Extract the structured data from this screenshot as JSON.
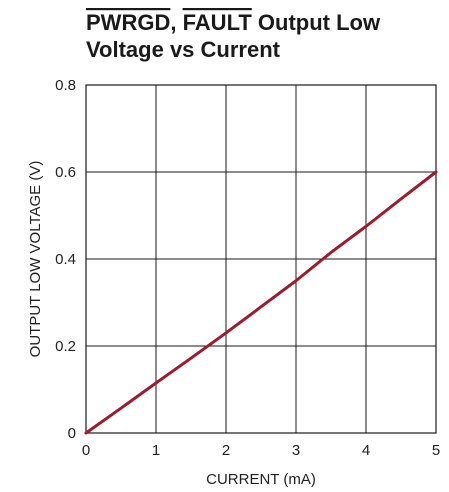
{
  "chart_data": {
    "type": "line",
    "title": {
      "line1_parts": [
        "PWRGD",
        ", ",
        "FAULT",
        " Output Low"
      ],
      "line2": "Voltage vs Current"
    },
    "xlabel": "CURRENT (mA)",
    "ylabel": "OUTPUT LOW VOLTAGE (V)",
    "xlim": [
      0,
      5
    ],
    "ylim": [
      0,
      0.8
    ],
    "x_ticks": [
      0,
      1,
      2,
      3,
      4,
      5
    ],
    "y_ticks": [
      0,
      0.2,
      0.4,
      0.6,
      0.8
    ],
    "x_tick_labels": [
      "0",
      "1",
      "2",
      "3",
      "4",
      "5"
    ],
    "y_tick_labels": [
      "0",
      "0.2",
      "0.4",
      "0.6",
      "0.8"
    ],
    "grid": true,
    "series": [
      {
        "color": "#9b1b30",
        "x": [
          0,
          0.5,
          1,
          1.5,
          2,
          2.5,
          3,
          3.5,
          4,
          4.5,
          5
        ],
        "y": [
          0,
          0.057,
          0.115,
          0.172,
          0.23,
          0.29,
          0.35,
          0.415,
          0.475,
          0.538,
          0.6
        ]
      }
    ]
  }
}
